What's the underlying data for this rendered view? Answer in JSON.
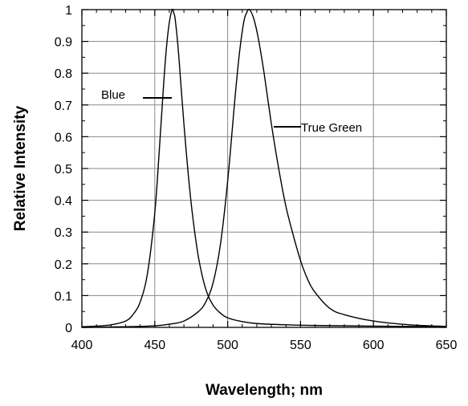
{
  "chart_data": {
    "type": "line",
    "title": "",
    "xlabel": "Wavelength; nm",
    "ylabel": "Relative Intensity",
    "xlim": [
      400,
      650
    ],
    "ylim": [
      0,
      1
    ],
    "grid": true,
    "x_ticks": [
      400,
      450,
      500,
      550,
      600,
      650
    ],
    "y_ticks": [
      0,
      0.1,
      0.2,
      0.3,
      0.4,
      0.5,
      0.6,
      0.7,
      0.8,
      0.9,
      1
    ],
    "x_tick_labels": [
      "400",
      "450",
      "500",
      "550",
      "600",
      "650"
    ],
    "y_tick_labels": [
      "0",
      "0.1",
      "0.2",
      "0.3",
      "0.4",
      "0.5",
      "0.6",
      "0.7",
      "0.8",
      "0.9",
      "1"
    ],
    "series": [
      {
        "name": "Blue",
        "x": [
          400,
          410,
          420,
          430,
          435,
          440,
          445,
          450,
          453,
          456,
          458,
          460,
          462,
          463,
          464,
          466,
          468,
          470,
          473,
          476,
          480,
          485,
          490,
          495,
          500,
          510,
          520,
          540,
          560,
          600,
          650
        ],
        "y": [
          0.002,
          0.004,
          0.008,
          0.02,
          0.04,
          0.08,
          0.17,
          0.36,
          0.55,
          0.76,
          0.88,
          0.96,
          1.0,
          0.99,
          0.97,
          0.88,
          0.76,
          0.64,
          0.48,
          0.35,
          0.22,
          0.12,
          0.07,
          0.045,
          0.03,
          0.018,
          0.012,
          0.008,
          0.006,
          0.004,
          0.002
        ]
      },
      {
        "name": "True Green",
        "x": [
          400,
          430,
          450,
          460,
          470,
          480,
          485,
          490,
          495,
          500,
          505,
          508,
          511,
          513,
          515,
          518,
          521,
          525,
          530,
          535,
          540,
          545,
          550,
          555,
          560,
          570,
          580,
          600,
          625,
          650
        ],
        "y": [
          0.0,
          0.002,
          0.005,
          0.01,
          0.02,
          0.05,
          0.08,
          0.14,
          0.26,
          0.46,
          0.72,
          0.86,
          0.96,
          0.99,
          1.0,
          0.97,
          0.91,
          0.8,
          0.64,
          0.5,
          0.38,
          0.29,
          0.21,
          0.15,
          0.11,
          0.06,
          0.04,
          0.02,
          0.008,
          0.003
        ]
      }
    ],
    "annotations": [
      {
        "text": "Blue",
        "series": "Blue"
      },
      {
        "text": "True Green",
        "series": "True Green"
      }
    ]
  }
}
